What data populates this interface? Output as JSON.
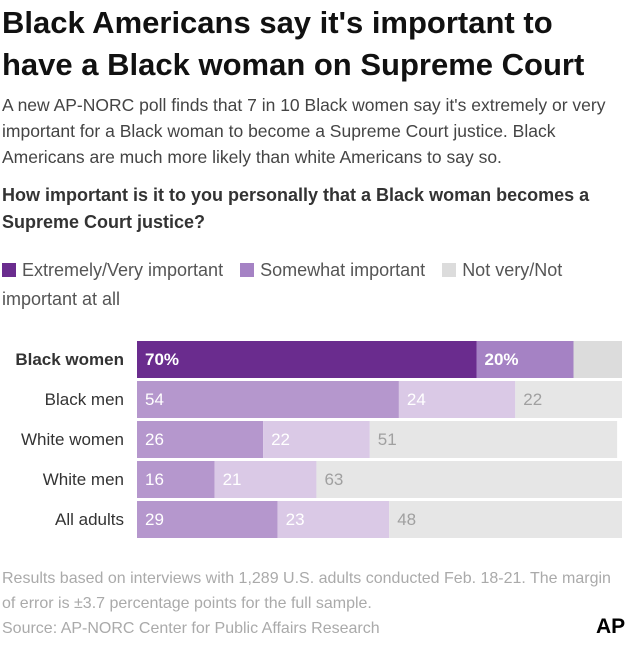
{
  "chart_data": {
    "type": "stacked-bar-horizontal",
    "title": "Black Americans say it's important to have a Black woman on Supreme Court",
    "subtitle": "A new AP-NORC poll finds that 7 in 10 Black women say it's extremely or very important for a Black woman to become a Supreme Court justice. Black Americans are much more likely than white Americans to say so.",
    "question": "How important is it to you personally that a Black woman becomes a Supreme Court justice?",
    "categories": [
      "Black women",
      "Black men",
      "White women",
      "White men",
      "All adults"
    ],
    "xlim": [
      0,
      100
    ],
    "series": [
      {
        "name": "Extremely/Very important",
        "color": "#6a2c8e",
        "colors": [
          "#6a2c8e",
          "#b597cd",
          "#b597cd",
          "#b597cd",
          "#b597cd"
        ],
        "values": [
          70,
          54,
          26,
          16,
          29
        ],
        "value_labels": [
          "70%",
          "54",
          "26",
          "16",
          "29"
        ]
      },
      {
        "name": "Somewhat important",
        "color": "#a582c4",
        "colors": [
          "#a582c4",
          "#dac9e6",
          "#dac9e6",
          "#dac9e6",
          "#dac9e6"
        ],
        "values": [
          20,
          24,
          22,
          21,
          23
        ],
        "value_labels": [
          "20%",
          "24",
          "22",
          "21",
          "23"
        ]
      },
      {
        "name": "Not very/Not important at all",
        "color": "#dcdcdc",
        "colors": [
          "#dcdcdc",
          "#e6e6e6",
          "#e6e6e6",
          "#e6e6e6",
          "#e6e6e6"
        ],
        "values": [
          10,
          22,
          51,
          63,
          48
        ],
        "value_labels": [
          null,
          "22",
          "51",
          "63",
          "48"
        ]
      }
    ],
    "notes": "Results based on interviews with 1,289 U.S. adults conducted Feb. 18-21. The margin of error is ±3.7 percentage points for the full sample.",
    "source": "Source: AP-NORC Center for Public Affairs Research",
    "logo": "AP"
  }
}
